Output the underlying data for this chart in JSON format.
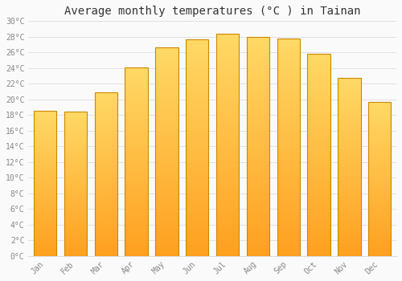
{
  "title": "Average monthly temperatures (°C ) in Tainan",
  "months": [
    "Jan",
    "Feb",
    "Mar",
    "Apr",
    "May",
    "Jun",
    "Jul",
    "Aug",
    "Sep",
    "Oct",
    "Nov",
    "Dec"
  ],
  "temperatures": [
    18.5,
    18.4,
    20.9,
    24.1,
    26.6,
    27.7,
    28.4,
    28.0,
    27.8,
    25.8,
    22.7,
    19.7
  ],
  "bar_color_top": "#FFD966",
  "bar_color_bottom": "#FFA020",
  "bar_color_edge": "#CC8800",
  "bar_width": 0.75,
  "ylim": [
    0,
    30
  ],
  "ytick_step": 2,
  "background_color": "#FAFAFA",
  "grid_color": "#DDDDDD",
  "title_fontsize": 10,
  "tick_fontsize": 7,
  "tick_color": "#888888",
  "tick_font": "monospace"
}
